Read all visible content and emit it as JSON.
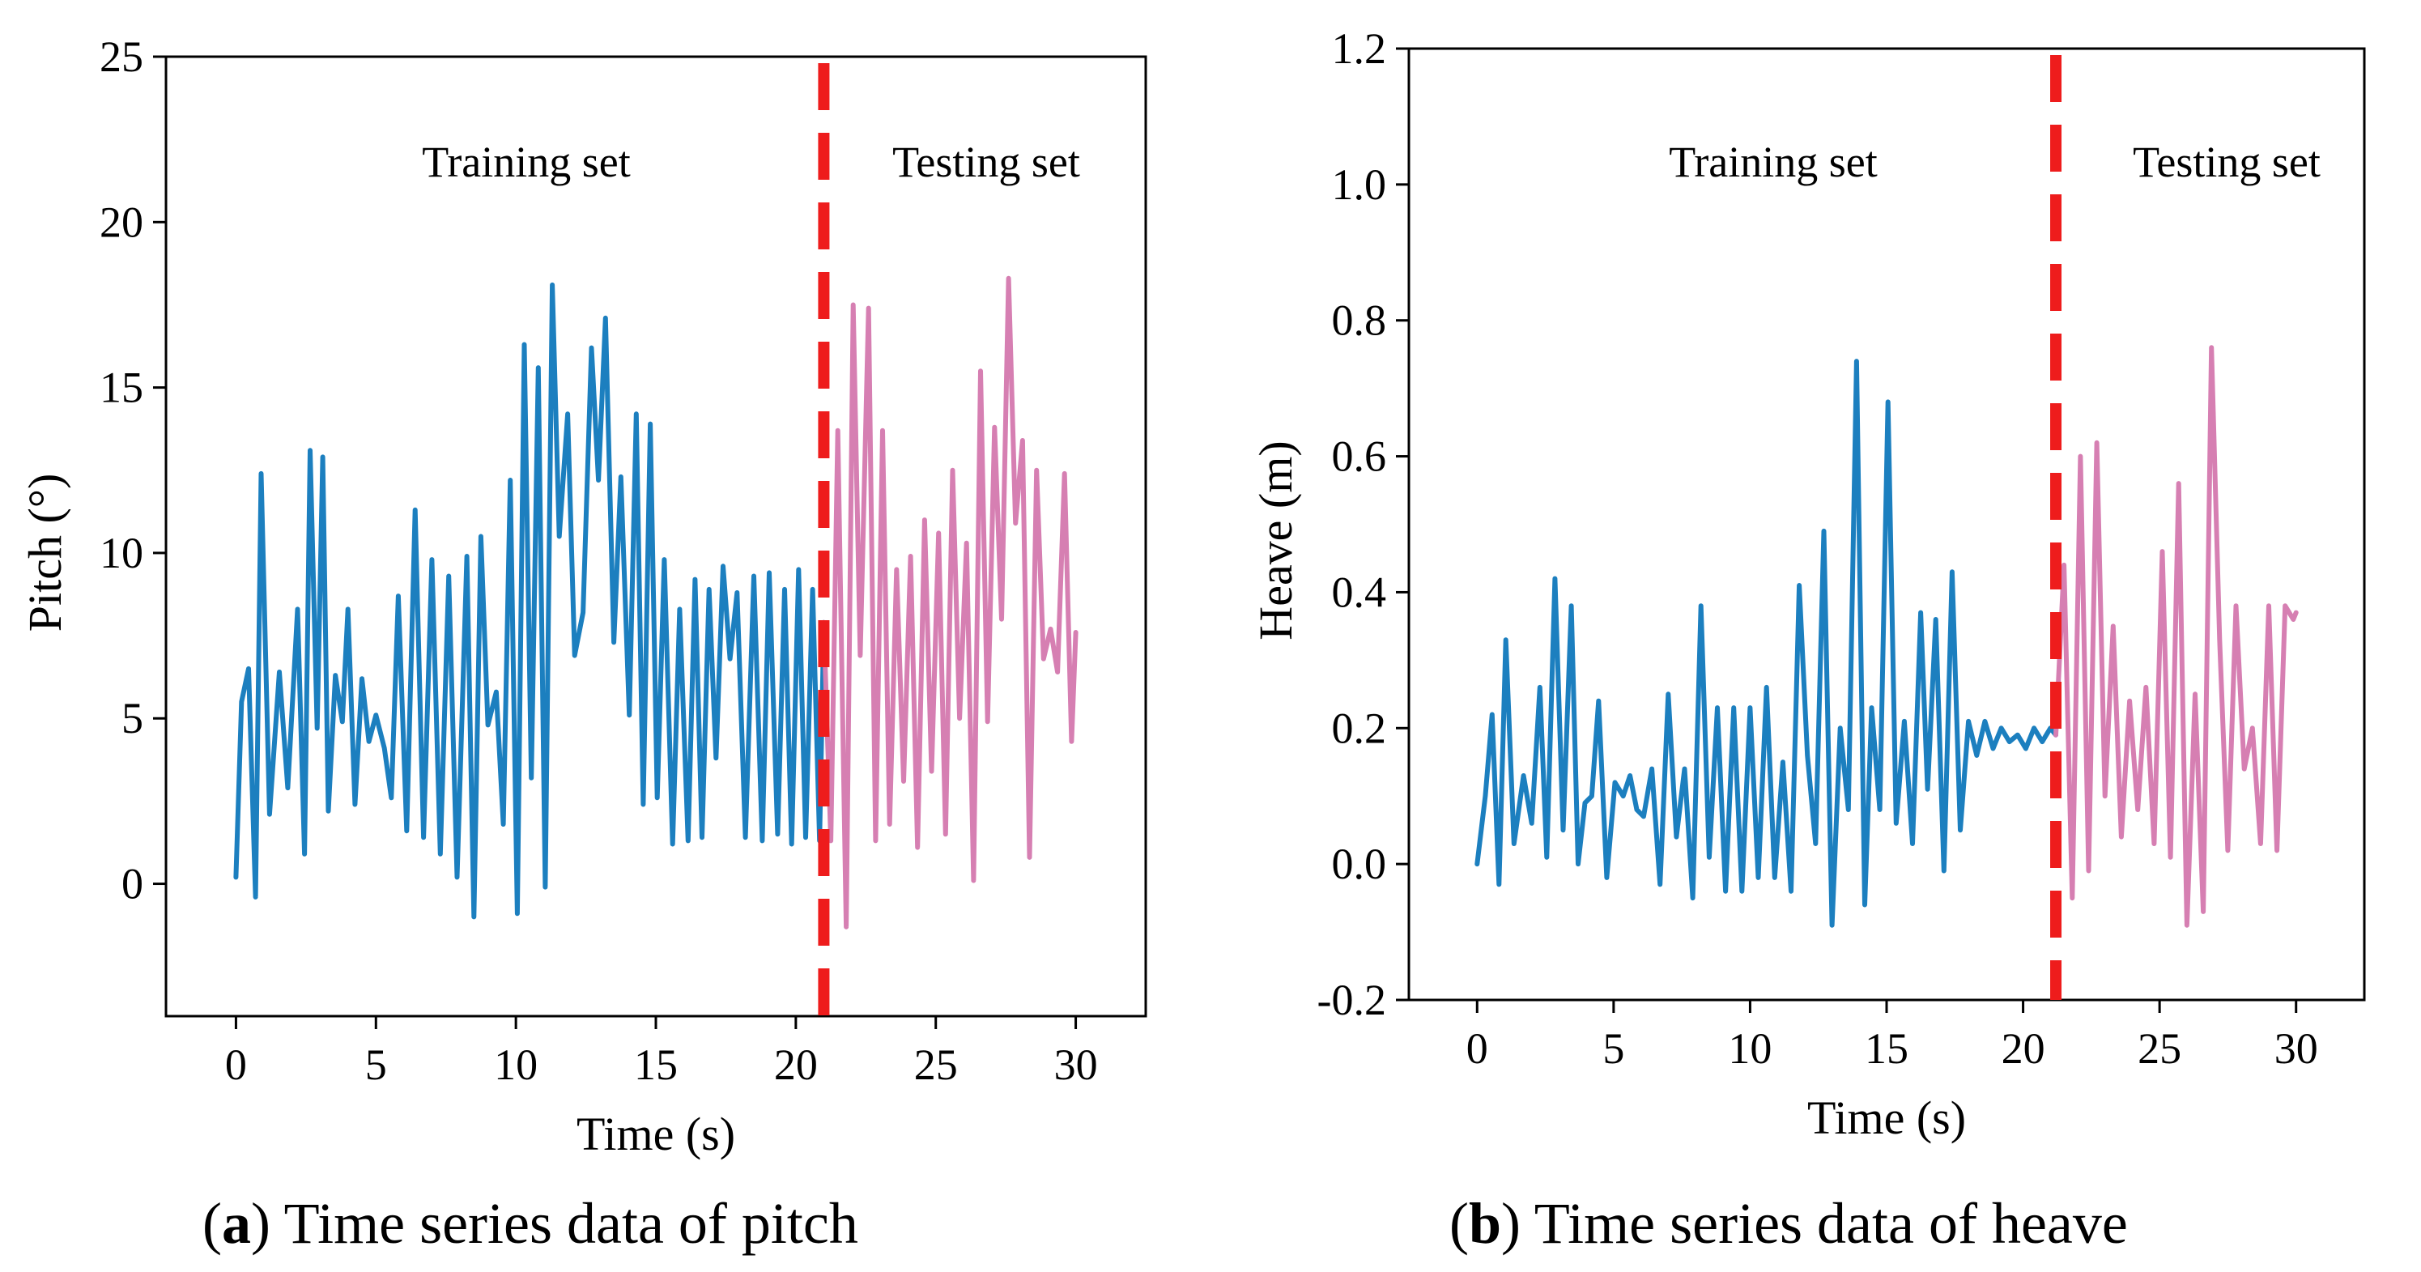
{
  "colors": {
    "train": "#1c7fbf",
    "test": "#d67fb2",
    "split": "#ee1c1c",
    "axis": "#000000"
  },
  "captions": [
    {
      "letter": "a",
      "text": ") Time series data of pitch",
      "open": "("
    },
    {
      "letter": "b",
      "text": ") Time series data of heave",
      "open": "("
    }
  ],
  "chart_data": [
    {
      "type": "line",
      "id": "pitch",
      "xlabel": "Time (s)",
      "ylabel": "Pitch (°)",
      "xlim": [
        -2.5,
        32.5
      ],
      "ylim": [
        -4,
        25
      ],
      "xticks": [
        0,
        5,
        10,
        15,
        20,
        25,
        30
      ],
      "yticks": [
        0,
        5,
        10,
        15,
        20,
        25
      ],
      "xtick_labels": [
        "0",
        "5",
        "10",
        "15",
        "20",
        "25",
        "30"
      ],
      "ytick_labels": [
        "0",
        "5",
        "10",
        "15",
        "20",
        "25"
      ],
      "split_time": 21.0,
      "annotations": {
        "train": "Training set",
        "test": "Testing set"
      },
      "series": [
        {
          "name": "Training set",
          "x": [
            0,
            0.2,
            0.45,
            0.7,
            0.9,
            1.2,
            1.55,
            1.85,
            2.2,
            2.45,
            2.65,
            2.9,
            3.1,
            3.3,
            3.55,
            3.8,
            4.0,
            4.25,
            4.5,
            4.75,
            5.0,
            5.3,
            5.55,
            5.8,
            6.1,
            6.4,
            6.7,
            7.0,
            7.3,
            7.6,
            7.9,
            8.25,
            8.5,
            8.75,
            9.0,
            9.3,
            9.55,
            9.8,
            10.05,
            10.3,
            10.55,
            10.8,
            11.05,
            11.3,
            11.55,
            11.85,
            12.1,
            12.4,
            12.7,
            12.95,
            13.2,
            13.5,
            13.75,
            14.05,
            14.3,
            14.55,
            14.8,
            15.05,
            15.3,
            15.6,
            15.85,
            16.15,
            16.4,
            16.65,
            16.9,
            17.15,
            17.4,
            17.65,
            17.9,
            18.2,
            18.5,
            18.8,
            19.05,
            19.35,
            19.6,
            19.85,
            20.1,
            20.35,
            20.6,
            20.85,
            21.0
          ],
          "y": [
            0.2,
            5.5,
            6.5,
            -0.4,
            12.4,
            2.1,
            6.4,
            2.9,
            8.3,
            0.9,
            13.1,
            4.7,
            12.9,
            2.2,
            6.3,
            4.9,
            8.3,
            2.4,
            6.2,
            4.3,
            5.1,
            4.1,
            2.6,
            8.7,
            1.6,
            11.3,
            1.4,
            9.8,
            0.9,
            9.3,
            0.2,
            9.9,
            -1.0,
            10.5,
            4.8,
            5.8,
            1.8,
            12.2,
            -0.9,
            16.3,
            3.2,
            15.6,
            -0.1,
            18.1,
            10.5,
            14.2,
            6.9,
            8.2,
            16.2,
            12.2,
            17.1,
            7.3,
            12.3,
            5.1,
            14.2,
            2.4,
            13.9,
            2.6,
            9.8,
            1.2,
            8.3,
            1.3,
            9.2,
            1.4,
            8.9,
            3.8,
            9.6,
            6.8,
            8.8,
            1.4,
            9.3,
            1.3,
            9.4,
            1.5,
            8.9,
            1.2,
            9.5,
            1.4,
            8.9,
            1.3,
            7.9
          ]
        },
        {
          "name": "Testing set",
          "x": [
            21.0,
            21.25,
            21.5,
            21.8,
            22.05,
            22.3,
            22.6,
            22.85,
            23.1,
            23.35,
            23.6,
            23.85,
            24.1,
            24.35,
            24.6,
            24.85,
            25.1,
            25.35,
            25.6,
            25.85,
            26.1,
            26.35,
            26.6,
            26.85,
            27.1,
            27.35,
            27.6,
            27.85,
            28.1,
            28.35,
            28.6,
            28.85,
            29.1,
            29.35,
            29.6,
            29.85,
            30.0
          ],
          "y": [
            7.9,
            1.3,
            13.7,
            -1.3,
            17.5,
            6.9,
            17.4,
            1.3,
            13.7,
            1.8,
            9.5,
            3.1,
            9.9,
            1.1,
            11.0,
            3.4,
            10.6,
            1.5,
            12.5,
            5.0,
            10.3,
            0.1,
            15.5,
            4.9,
            13.8,
            8.0,
            18.3,
            10.9,
            13.4,
            0.8,
            12.5,
            6.8,
            7.7,
            6.4,
            12.4,
            4.3,
            7.6
          ]
        }
      ]
    },
    {
      "type": "line",
      "id": "heave",
      "xlabel": "Time (s)",
      "ylabel": "Heave (m)",
      "xlim": [
        -2.5,
        32.5
      ],
      "ylim": [
        -0.2,
        1.2
      ],
      "xticks": [
        0,
        5,
        10,
        15,
        20,
        25,
        30
      ],
      "yticks": [
        -0.2,
        0.0,
        0.2,
        0.4,
        0.6,
        0.8,
        1.0,
        1.2
      ],
      "xtick_labels": [
        "0",
        "5",
        "10",
        "15",
        "20",
        "25",
        "30"
      ],
      "ytick_labels": [
        "-0.2",
        "0.0",
        "0.2",
        "0.4",
        "0.6",
        "0.8",
        "1.0",
        "1.2"
      ],
      "split_time": 21.2,
      "annotations": {
        "train": "Training set",
        "test": "Testing set"
      },
      "series": [
        {
          "name": "Training set",
          "x": [
            0,
            0.3,
            0.55,
            0.8,
            1.05,
            1.35,
            1.7,
            2.0,
            2.3,
            2.55,
            2.85,
            3.15,
            3.45,
            3.7,
            3.95,
            4.2,
            4.45,
            4.75,
            5.05,
            5.35,
            5.6,
            5.85,
            6.1,
            6.4,
            6.7,
            7.0,
            7.3,
            7.6,
            7.9,
            8.2,
            8.5,
            8.8,
            9.1,
            9.4,
            9.7,
            10.0,
            10.3,
            10.6,
            10.9,
            11.2,
            11.5,
            11.8,
            12.1,
            12.4,
            12.7,
            13.0,
            13.3,
            13.6,
            13.9,
            14.2,
            14.45,
            14.75,
            15.05,
            15.35,
            15.65,
            15.95,
            16.25,
            16.5,
            16.8,
            17.1,
            17.4,
            17.7,
            18.0,
            18.3,
            18.6,
            18.9,
            19.2,
            19.5,
            19.8,
            20.1,
            20.4,
            20.7,
            21.0,
            21.2
          ],
          "y": [
            0.0,
            0.1,
            0.22,
            -0.03,
            0.33,
            0.03,
            0.13,
            0.06,
            0.26,
            0.01,
            0.42,
            0.05,
            0.38,
            0.0,
            0.09,
            0.1,
            0.24,
            -0.02,
            0.12,
            0.1,
            0.13,
            0.08,
            0.07,
            0.14,
            -0.03,
            0.25,
            0.04,
            0.14,
            -0.05,
            0.38,
            0.01,
            0.23,
            -0.04,
            0.23,
            -0.04,
            0.23,
            -0.02,
            0.26,
            -0.02,
            0.15,
            -0.04,
            0.41,
            0.16,
            0.03,
            0.49,
            -0.09,
            0.2,
            0.08,
            0.74,
            -0.06,
            0.23,
            0.08,
            0.68,
            0.06,
            0.21,
            0.03,
            0.37,
            0.11,
            0.36,
            -0.01,
            0.43,
            0.05,
            0.21,
            0.16,
            0.21,
            0.17,
            0.2,
            0.18,
            0.19,
            0.17,
            0.2,
            0.18,
            0.2,
            0.19
          ]
        },
        {
          "name": "Testing set",
          "x": [
            21.2,
            21.5,
            21.8,
            22.1,
            22.4,
            22.7,
            23.0,
            23.3,
            23.6,
            23.9,
            24.2,
            24.5,
            24.8,
            25.1,
            25.4,
            25.7,
            26.0,
            26.3,
            26.6,
            26.9,
            27.2,
            27.5,
            27.8,
            28.1,
            28.4,
            28.7,
            29.0,
            29.3,
            29.6,
            29.9,
            30.0
          ],
          "y": [
            0.19,
            0.44,
            -0.05,
            0.6,
            -0.01,
            0.62,
            0.1,
            0.35,
            0.04,
            0.24,
            0.08,
            0.26,
            0.03,
            0.46,
            0.01,
            0.56,
            -0.09,
            0.25,
            -0.07,
            0.76,
            0.33,
            0.02,
            0.38,
            0.14,
            0.2,
            0.03,
            0.38,
            0.02,
            0.38,
            0.36,
            0.37
          ]
        }
      ]
    }
  ]
}
